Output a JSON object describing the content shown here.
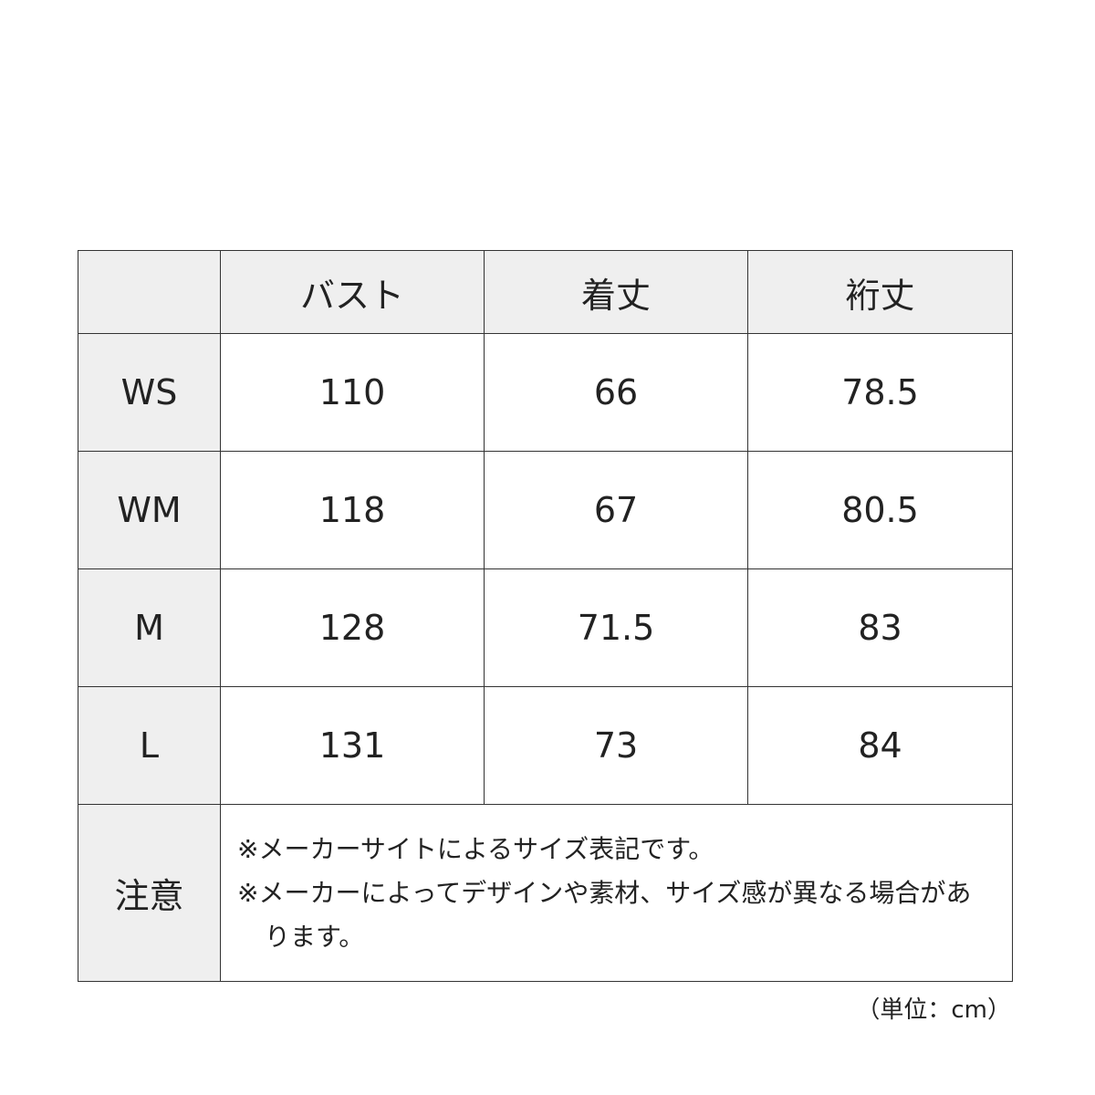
{
  "table": {
    "headers": [
      "",
      "バスト",
      "着丈",
      "裄丈"
    ],
    "rows": [
      {
        "size": "WS",
        "values": [
          "110",
          "66",
          "78.5"
        ]
      },
      {
        "size": "WM",
        "values": [
          "118",
          "67",
          "80.5"
        ]
      },
      {
        "size": "M",
        "values": [
          "128",
          "71.5",
          "83"
        ]
      },
      {
        "size": "L",
        "values": [
          "131",
          "73",
          "84"
        ]
      }
    ],
    "note_label": "注意",
    "notes": [
      "※メーカーサイトによるサイズ表記です。",
      "※メーカーによってデザインや素材、サイズ感が異なる場合があります。"
    ]
  },
  "unit": "（単位：cm）"
}
